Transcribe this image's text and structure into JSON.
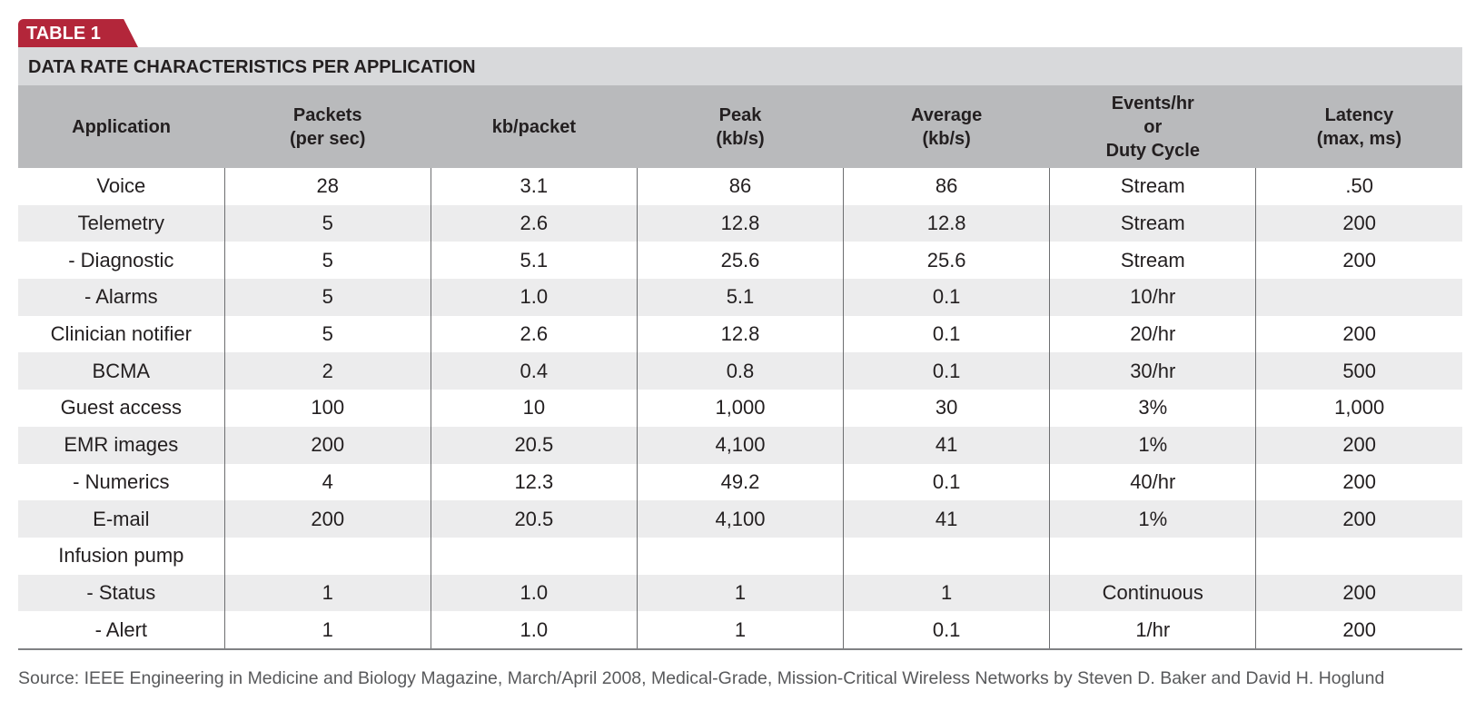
{
  "tag": "TABLE 1",
  "title": "DATA RATE CHARACTERISTICS PER APPLICATION",
  "table": {
    "headers": [
      [
        "Application"
      ],
      [
        "Packets",
        "(per sec)"
      ],
      [
        "kb/packet"
      ],
      [
        "Peak",
        "(kb/s)"
      ],
      [
        "Average",
        "(kb/s)"
      ],
      [
        "Events/hr",
        "or",
        "Duty Cycle"
      ],
      [
        "Latency",
        "(max, ms)"
      ]
    ],
    "rows": [
      [
        "Voice",
        "28",
        "3.1",
        "86",
        "86",
        "Stream",
        ".50"
      ],
      [
        "Telemetry",
        "5",
        "2.6",
        "12.8",
        "12.8",
        "Stream",
        "200"
      ],
      [
        "- Diagnostic",
        "5",
        "5.1",
        "25.6",
        "25.6",
        "Stream",
        "200"
      ],
      [
        "- Alarms",
        "5",
        "1.0",
        "5.1",
        "0.1",
        "10/hr",
        null
      ],
      [
        "Clinician notifier",
        "5",
        "2.6",
        "12.8",
        "0.1",
        "20/hr",
        "200"
      ],
      [
        "BCMA",
        "2",
        "0.4",
        "0.8",
        "0.1",
        "30/hr",
        "500"
      ],
      [
        "Guest access",
        "100",
        "10",
        "1,000",
        "30",
        "3%",
        "1,000"
      ],
      [
        "EMR images",
        "200",
        "20.5",
        "4,100",
        "41",
        "1%",
        "200"
      ],
      [
        "- Numerics",
        "4",
        "12.3",
        "49.2",
        "0.1",
        "40/hr",
        "200"
      ],
      [
        "E-mail",
        "200",
        "20.5",
        "4,100",
        "41",
        "1%",
        "200"
      ],
      [
        "Infusion pump",
        null,
        null,
        null,
        null,
        null,
        null
      ],
      [
        "- Status",
        "1",
        "1.0",
        "1",
        "1",
        "Continuous",
        "200"
      ],
      [
        "- Alert",
        "1",
        "1.0",
        "1",
        "0.1",
        "1/hr",
        "200"
      ]
    ]
  },
  "source": "Source: IEEE Engineering in Medicine and Biology Magazine, March/April 2008, Medical-Grade, Mission-Critical Wireless Networks by Steven D. Baker and David H. Hoglund"
}
